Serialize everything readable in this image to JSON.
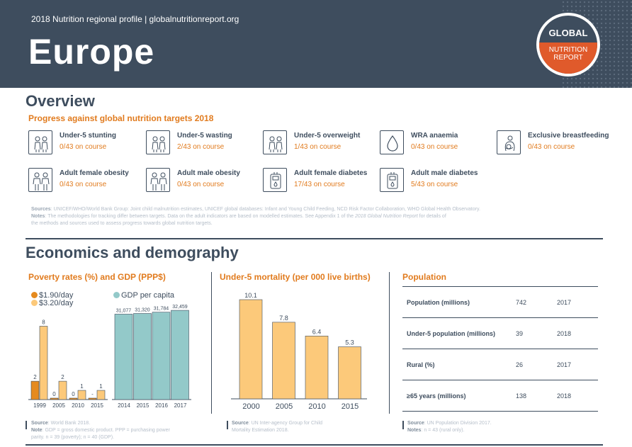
{
  "header": {
    "subtitle": "2018 Nutrition regional profile | globalnutritionreport.org",
    "title": "Europe",
    "logo": {
      "top": "GLOBAL",
      "line1": "NUTRITION",
      "line2": "REPORT"
    }
  },
  "overview": {
    "heading": "Overview",
    "subheading": "Progress against global nutrition targets 2018",
    "targets": [
      {
        "name": "Under-5 stunting",
        "status": "0/43 on course",
        "icon": "children-icon"
      },
      {
        "name": "Under-5 wasting",
        "status": "2/43 on course",
        "icon": "children-icon"
      },
      {
        "name": "Under-5 overweight",
        "status": "1/43 on course",
        "icon": "children-icon"
      },
      {
        "name": "WRA anaemia",
        "status": "0/43 on course",
        "icon": "blood-drop-icon"
      },
      {
        "name": "Exclusive breastfeeding",
        "status": "0/43 on course",
        "icon": "breastfeeding-icon"
      },
      {
        "name": "Adult female obesity",
        "status": "0/43 on course",
        "icon": "adults-icon"
      },
      {
        "name": "Adult male obesity",
        "status": "0/43 on course",
        "icon": "adults-icon"
      },
      {
        "name": "Adult female diabetes",
        "status": "17/43 on course",
        "icon": "glucose-meter-icon"
      },
      {
        "name": "Adult male diabetes",
        "status": "5/43 on course",
        "icon": "glucose-meter-icon"
      }
    ],
    "sources_label": "Sources",
    "sources_text": ": UNICEF/WHO/World Bank Group: Joint child malnutrition estimates, UNICEF global databases: Infant and Young Child Feeding, NCD Risk Factor Collaboration, WHO Global Health Observatory.",
    "notes_label": "Notes",
    "notes_text": ": The methodologies for tracking differ between targets. Data on the adult indicators are based on modelled estimates. See Appendix 1 of the ",
    "notes_italic": "2018 Global Nutrition Report",
    "notes_text2": " for details of",
    "notes_line2": "the methods and sources used to assess progress towards global nutrition targets."
  },
  "economics": {
    "heading": "Economics and demography",
    "poverty": {
      "title": "Poverty rates (%) and GDP (PPP$)",
      "source_label": "Source",
      "source_text": ": World Bank 2018.",
      "note_label": "Note",
      "note_text": ": GDP = gross domestic product. PPP = purchasing power",
      "note_line2": "parity. n = 39 (poverty); n = 40 (GDP)."
    },
    "mortality": {
      "title": "Under-5 mortality (per 000 live births)",
      "source_label": "Source",
      "source_text": ": UN Inter-agency Group for Child",
      "source_line2": "Mortality Estimation 2018."
    },
    "population": {
      "title": "Population",
      "rows": [
        {
          "label": "Population (millions)",
          "value": "742",
          "year": "2017"
        },
        {
          "label": "Under-5 population (millions)",
          "value": "39",
          "year": "2018"
        },
        {
          "label": "Rural (%)",
          "value": "26",
          "year": "2017"
        },
        {
          "label": "≥65 years (millions)",
          "value": "138",
          "year": "2018"
        }
      ],
      "source_label": "Source",
      "source_text": ": UN Population Division 2017.",
      "note_label": "Notes",
      "note_text": ": n = 43 (rural only)."
    }
  },
  "chart_data": [
    {
      "type": "bar",
      "categories": [
        "1999",
        "2005",
        "2010",
        "2015"
      ],
      "series": [
        {
          "name": "$1.90/day",
          "values": [
            2,
            0,
            0,
            0
          ],
          "labels": [
            "2",
            "0",
            "0",
            "-"
          ],
          "color": "#e58a1f"
        },
        {
          "name": "$3.20/day",
          "values": [
            8,
            2,
            1,
            1
          ],
          "labels": [
            "8",
            "2",
            "1",
            "1"
          ],
          "color": "#fcc97a"
        }
      ],
      "ylim": [
        0,
        8.5
      ]
    },
    {
      "type": "bar",
      "categories": [
        "2014",
        "2015",
        "2016",
        "2017"
      ],
      "series": [
        {
          "name": "GDP per capita",
          "values": [
            31077,
            31320,
            31784,
            32459
          ],
          "labels": [
            "31,077",
            "31,320",
            "31,784",
            "32,459"
          ],
          "color": "#93c9c9"
        }
      ],
      "ylim": [
        0,
        33000
      ]
    },
    {
      "type": "bar",
      "categories": [
        "2000",
        "2005",
        "2010",
        "2015"
      ],
      "series": [
        {
          "name": "",
          "values": [
            10.1,
            7.8,
            6.4,
            5.3
          ],
          "labels": [
            "10.1",
            "7.8",
            "6.4",
            "5.3"
          ],
          "color": "#fcc97a"
        }
      ],
      "ylim": [
        0,
        10.1
      ]
    }
  ]
}
